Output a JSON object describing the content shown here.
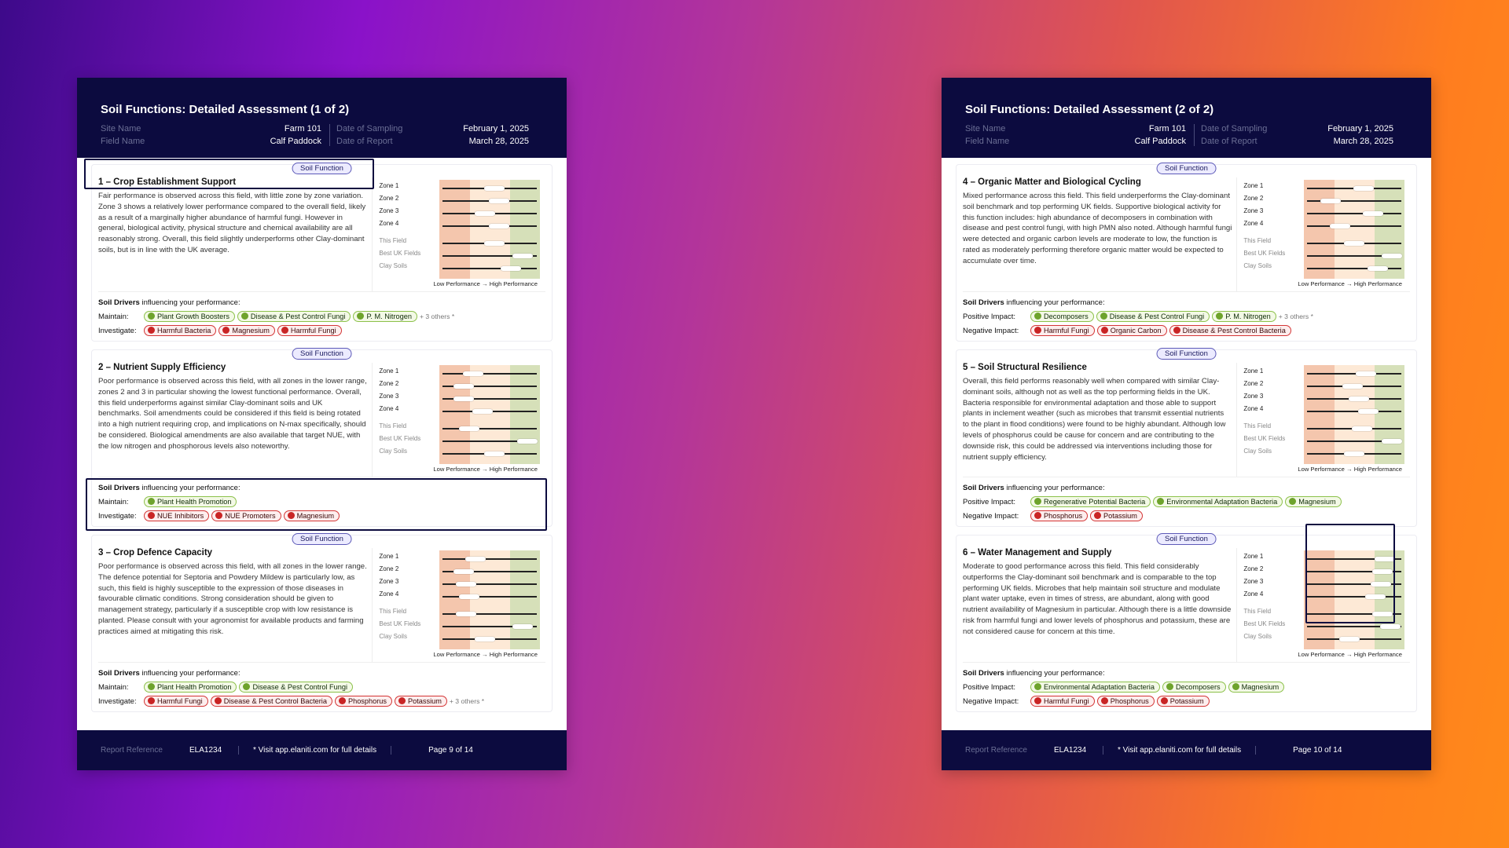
{
  "common": {
    "soil_function_tag": "Soil Function",
    "site_name_label": "Site Name",
    "field_name_label": "Field Name",
    "date_sampling_label": "Date of Sampling",
    "date_report_label": "Date of Report",
    "site_name": "Farm 101",
    "field_name": "Calf Paddock",
    "date_sampling": "February 1, 2025",
    "date_report": "March 28, 2025",
    "zone_labels": [
      "Zone 1",
      "Zone 2",
      "Zone 3",
      "Zone 4"
    ],
    "bench_labels": [
      "This Field",
      "Best UK Fields",
      "Clay Soils"
    ],
    "legend": "Low Performance → High Performance",
    "drivers_title_bold": "Soil Drivers",
    "drivers_title_rest": " influencing your performance:",
    "report_ref_label": "Report Reference",
    "report_ref": "ELA1234",
    "visit_text": "* Visit app.elaniti.com for full details"
  },
  "pages": [
    {
      "title": "Soil Functions: Detailed Assessment (1 of 2)",
      "page_num": "Page 9 of 14",
      "cards": [
        {
          "title": "1 – Crop Establishment Support",
          "desc": "Fair performance is observed across this field, with little zone by zone variation. Zone 3 shows a relatively lower performance compared to the overall field, likely as a result of a marginally higher abundance of harmful fungi. However in general, biological activity, physical structure and chemical availability are all reasonably strong. Overall, this field slightly underperforms other Clay-dominant soils, but is in line with the UK average.",
          "levels": [
            0.55,
            0.6,
            0.45,
            0.6,
            0.55,
            0.85,
            0.72
          ],
          "row1_label": "Maintain:",
          "row1": [
            "Plant Growth Boosters",
            "Disease & Pest Control Fungi",
            "P. M. Nitrogen"
          ],
          "row1_others": "+ 3 others *",
          "row2_label": "Investigate:",
          "row2": [
            "Harmful Bacteria",
            "Magnesium",
            "Harmful Fungi"
          ],
          "row2_others": ""
        },
        {
          "title": "2 – Nutrient Supply Efficiency",
          "desc": "Poor performance is observed across this field, with all zones in the lower range, zones 2 and 3 in particular showing the lowest functional performance. Overall, this field underperforms against similar Clay-dominant soils and UK benchmarks. Soil amendments could be considered if this field is being rotated into a high nutrient requiring crop, and implications on N-max specifically, should be considered. Biological amendments are also available that target NUE, with the low nitrogen and phosphorous levels also noteworthy.",
          "levels": [
            0.32,
            0.22,
            0.22,
            0.42,
            0.28,
            0.9,
            0.55
          ],
          "row1_label": "Maintain:",
          "row1": [
            "Plant Health Promotion"
          ],
          "row1_others": "",
          "row2_label": "Investigate:",
          "row2": [
            "NUE Inhibitors",
            "NUE Promoters",
            "Magnesium"
          ],
          "row2_others": ""
        },
        {
          "title": "3 – Crop Defence Capacity",
          "desc": "Poor performance is observed across this field, with all zones in the lower range. The defence potential for Septoria and Powdery Mildew is particularly low, as such, this field is highly susceptible to the expression of those diseases in favourable climatic conditions. Strong consideration should be given to management strategy, particularly if a susceptible crop with low resistance is planted. Please consult with your agronomist for available products and farming practices aimed at mitigating this risk.",
          "levels": [
            0.35,
            0.22,
            0.25,
            0.28,
            0.25,
            0.85,
            0.45
          ],
          "row1_label": "Maintain:",
          "row1": [
            "Plant Health Promotion",
            "Disease & Pest Control Fungi"
          ],
          "row1_others": "",
          "row2_label": "Investigate:",
          "row2": [
            "Harmful Fungi",
            "Disease & Pest Control Bacteria",
            "Phosphorus",
            "Potassium"
          ],
          "row2_others": "+ 3 others *"
        }
      ]
    },
    {
      "title": "Soil Functions: Detailed Assessment (2 of 2)",
      "page_num": "Page 10 of 14",
      "cards": [
        {
          "title": "4 – Organic Matter and Biological Cycling",
          "desc": "Mixed performance across this field. This field underperforms the Clay-dominant soil benchmark and top performing UK fields. Supportive biological activity for this function includes: high abundance of decomposers in combination with disease and pest control fungi, with high PMN also noted. Although harmful fungi were detected and organic carbon levels are moderate to low, the function is rated as moderately performing therefore organic matter would be expected to accumulate over time.",
          "levels": [
            0.6,
            0.25,
            0.7,
            0.35,
            0.5,
            0.9,
            0.75
          ],
          "row1_label": "Positive Impact:",
          "row1": [
            "Decomposers",
            "Disease & Pest Control Fungi",
            "P. M. Nitrogen"
          ],
          "row1_others": "+ 3 others *",
          "row2_label": "Negative Impact:",
          "row2": [
            "Harmful Fungi",
            "Organic Carbon",
            "Disease & Pest Control Bacteria"
          ],
          "row2_others": ""
        },
        {
          "title": "5 – Soil Structural Resilience",
          "desc": "Overall, this field performs reasonably well when compared with similar Clay-dominant soils, although not as well as the top performing fields in the UK. Bacteria responsible for environmental adaptation and those able to support plants in inclement weather (such as microbes that transmit essential nutrients to the plant in flood conditions) were found to be highly abundant. Although low levels of phosphorus could be cause for concern and are contributing to the downside risk, this could be addressed via interventions including those for nutrient supply efficiency.",
          "levels": [
            0.62,
            0.48,
            0.55,
            0.65,
            0.58,
            0.9,
            0.5
          ],
          "row1_label": "Positive Impact:",
          "row1": [
            "Regenerative Potential Bacteria",
            "Environmental Adaptation Bacteria",
            "Magnesium"
          ],
          "row1_others": "",
          "row2_label": "Negative Impact:",
          "row2": [
            "Phosphorus",
            "Potassium"
          ],
          "row2_others": ""
        },
        {
          "title": "6 – Water Management and Supply",
          "desc": "Moderate to good performance across this field. This field considerably outperforms the Clay-dominant soil benchmark and is comparable to the top performing UK fields. Microbes that help maintain soil structure and modulate plant water uptake, even in times of stress, are abundant, along with good nutrient availability of Magnesium in particular. Although there is a little downside risk from harmful fungi and lower levels of phosphorus and potassium, these are not considered cause for concern at this time.",
          "levels": [
            0.82,
            0.8,
            0.78,
            0.72,
            0.8,
            0.88,
            0.45
          ],
          "row1_label": "Positive Impact:",
          "row1": [
            "Environmental Adaptation Bacteria",
            "Decomposers",
            "Magnesium"
          ],
          "row1_others": "",
          "row2_label": "Negative Impact:",
          "row2": [
            "Harmful Fungi",
            "Phosphorus",
            "Potassium"
          ],
          "row2_others": ""
        }
      ]
    }
  ]
}
